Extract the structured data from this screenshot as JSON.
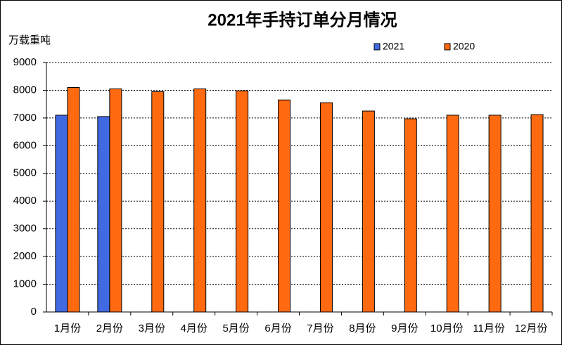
{
  "chart_data": {
    "type": "bar",
    "title": "2021年手持订单分月情况",
    "y_label": "万载重吨",
    "categories": [
      "1月份",
      "2月份",
      "3月份",
      "4月份",
      "5月份",
      "6月份",
      "7月份",
      "8月份",
      "9月份",
      "10月份",
      "11月份",
      "12月份"
    ],
    "series": [
      {
        "name": "2021",
        "color": "#4169e1",
        "values": [
          7100,
          7050,
          null,
          null,
          null,
          null,
          null,
          null,
          null,
          null,
          null,
          null
        ]
      },
      {
        "name": "2020",
        "color": "#ff6a10",
        "values": [
          8100,
          8050,
          7950,
          8050,
          7980,
          7650,
          7550,
          7250,
          6970,
          7100,
          7100,
          7120
        ]
      }
    ],
    "ylim": [
      0,
      9000
    ],
    "yticks": [
      0,
      1000,
      2000,
      3000,
      4000,
      5000,
      6000,
      7000,
      8000,
      9000
    ],
    "grid": true
  }
}
